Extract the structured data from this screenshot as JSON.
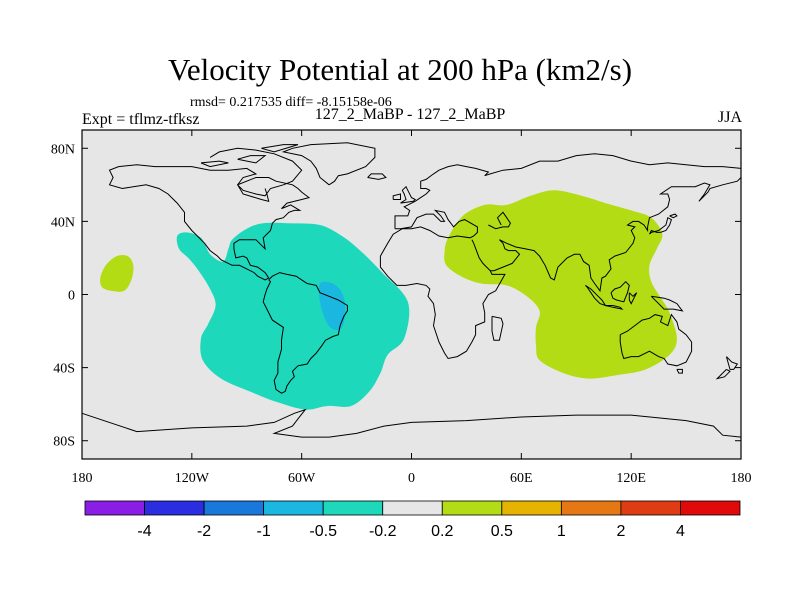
{
  "chart_data": {
    "type": "map-contour",
    "title": "Velocity Potential at 200 hPa (km2/s)",
    "stats_text": "rmsd= 0.217535 diff= -8.15158e-06",
    "subtitle": "127_2_MaBP - 127_2_MaBP",
    "left_label": "Expt = tflmz-tfksz",
    "right_label": "JJA",
    "x_range": [
      -180,
      180
    ],
    "y_range": [
      -90,
      90
    ],
    "x_ticks": [
      {
        "value": -180,
        "label": "180"
      },
      {
        "value": -120,
        "label": "120W"
      },
      {
        "value": -60,
        "label": "60W"
      },
      {
        "value": 0,
        "label": "0"
      },
      {
        "value": 60,
        "label": "60E"
      },
      {
        "value": 120,
        "label": "120E"
      },
      {
        "value": 180,
        "label": "180"
      }
    ],
    "y_ticks": [
      {
        "value": 80,
        "label": "80N"
      },
      {
        "value": 40,
        "label": "40N"
      },
      {
        "value": 0,
        "label": "0"
      },
      {
        "value": -40,
        "label": "40S"
      },
      {
        "value": -80,
        "label": "80S"
      }
    ],
    "colorbar": {
      "colors": [
        "#8a1ee6",
        "#2a2ee0",
        "#1a78dc",
        "#1ab8e0",
        "#1ed8bc",
        "#e6e6e6",
        "#b4dc14",
        "#e6b400",
        "#e67814",
        "#e03c14",
        "#e00a0a"
      ],
      "labels": [
        "-4",
        "-2",
        "-1",
        "-0.5",
        "-0.2",
        "0.2",
        "0.5",
        "1",
        "2",
        "4"
      ]
    },
    "regions": [
      {
        "name": "Eastern hemisphere positive region",
        "category": "0.2 to 0.5",
        "color": "#b4dc14",
        "outline": [
          [
            18,
            23
          ],
          [
            20,
            31
          ],
          [
            28,
            43
          ],
          [
            40,
            49
          ],
          [
            52,
            49
          ],
          [
            65,
            54
          ],
          [
            78,
            57
          ],
          [
            93,
            54
          ],
          [
            106,
            50
          ],
          [
            120,
            46
          ],
          [
            131,
            42
          ],
          [
            137,
            33
          ],
          [
            134,
            25
          ],
          [
            130,
            16
          ],
          [
            131,
            7
          ],
          [
            137,
            -3
          ],
          [
            141,
            -10
          ],
          [
            145,
            -24
          ],
          [
            141,
            -33
          ],
          [
            128,
            -41
          ],
          [
            113,
            -44
          ],
          [
            97,
            -46
          ],
          [
            83,
            -43
          ],
          [
            70,
            -36
          ],
          [
            68,
            -28
          ],
          [
            68,
            -18
          ],
          [
            70,
            -9
          ],
          [
            63,
            -1
          ],
          [
            52,
            5
          ],
          [
            38,
            6
          ],
          [
            27,
            10
          ],
          [
            19,
            16
          ]
        ]
      },
      {
        "name": "Central Pacific positive region",
        "category": "0.2 to 0.5",
        "color": "#b4dc14",
        "outline": [
          [
            -170,
            9
          ],
          [
            -167,
            16
          ],
          [
            -161,
            21
          ],
          [
            -155,
            21
          ],
          [
            -152,
            16
          ],
          [
            -153,
            8
          ],
          [
            -157,
            2
          ],
          [
            -164,
            2
          ],
          [
            -169,
            4
          ]
        ]
      },
      {
        "name": "Americas negative region",
        "category": "-0.5 to -0.2",
        "color": "#1ed8bc",
        "outline": [
          [
            -128,
            32
          ],
          [
            -123,
            34
          ],
          [
            -115,
            31
          ],
          [
            -110,
            22
          ],
          [
            -103,
            18
          ],
          [
            -100,
            25
          ],
          [
            -98,
            30
          ],
          [
            -90,
            36
          ],
          [
            -81,
            39
          ],
          [
            -67,
            39
          ],
          [
            -50,
            38
          ],
          [
            -38,
            32
          ],
          [
            -28,
            24
          ],
          [
            -16,
            12
          ],
          [
            -2,
            -4
          ],
          [
            -4,
            -24
          ],
          [
            -13,
            -33
          ],
          [
            -17,
            -43
          ],
          [
            -23,
            -53
          ],
          [
            -33,
            -61
          ],
          [
            -46,
            -61
          ],
          [
            -58,
            -63
          ],
          [
            -73,
            -59
          ],
          [
            -86,
            -54
          ],
          [
            -104,
            -46
          ],
          [
            -114,
            -36
          ],
          [
            -115,
            -24
          ],
          [
            -111,
            -16
          ],
          [
            -107,
            -6
          ],
          [
            -110,
            3
          ],
          [
            -117,
            14
          ],
          [
            -122,
            20
          ],
          [
            -127,
            25
          ]
        ]
      },
      {
        "name": "South American core negative region",
        "category": "-1 to -0.5",
        "color": "#1ab8e0",
        "outline": [
          [
            -50,
            6
          ],
          [
            -43,
            6
          ],
          [
            -38,
            1
          ],
          [
            -36,
            -8
          ],
          [
            -38,
            -18
          ],
          [
            -43,
            -19
          ],
          [
            -47,
            -14
          ],
          [
            -50,
            -4
          ]
        ]
      }
    ],
    "background": {
      "category": "-0.2 to 0.2",
      "color": "#e6e6e6"
    }
  }
}
